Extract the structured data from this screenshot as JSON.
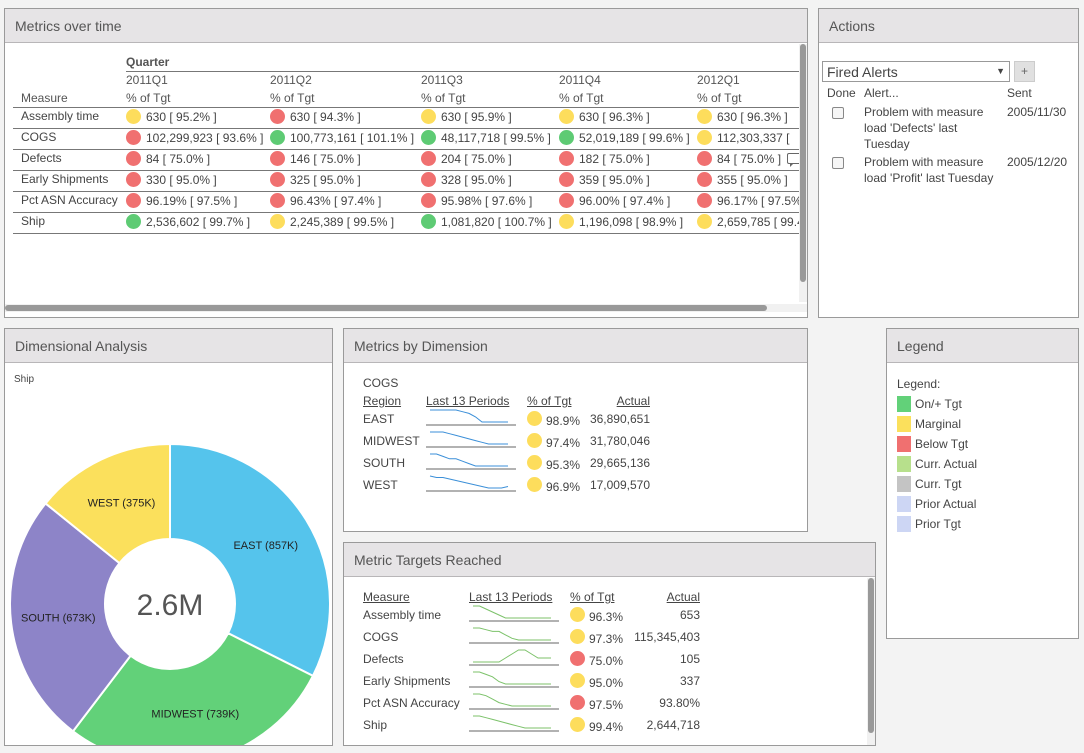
{
  "metrics_over_time": {
    "title": "Metrics over time",
    "group_header": "Quarter",
    "measure_header": "Measure",
    "subheader": "% of Tgt",
    "quarters": [
      "2011Q1",
      "2011Q2",
      "2011Q3",
      "2011Q4",
      "2012Q1"
    ],
    "rows": [
      {
        "measure": "Assembly time",
        "cells": [
          {
            "status": "yellow",
            "text": "630 [ 95.2% ]"
          },
          {
            "status": "red",
            "text": "630 [ 94.3% ]"
          },
          {
            "status": "yellow",
            "text": "630 [ 95.9% ]"
          },
          {
            "status": "yellow",
            "text": "630 [ 96.3% ]"
          },
          {
            "status": "yellow",
            "text": "630 [ 96.3% ]"
          }
        ]
      },
      {
        "measure": "COGS",
        "cells": [
          {
            "status": "red",
            "text": "102,299,923 [ 93.6% ]"
          },
          {
            "status": "green",
            "text": "100,773,161 [ 101.1% ]"
          },
          {
            "status": "green",
            "text": "48,117,718 [ 99.5% ]"
          },
          {
            "status": "green",
            "text": "52,019,189 [ 99.6% ]"
          },
          {
            "status": "yellow",
            "text": "112,303,337 ["
          }
        ]
      },
      {
        "measure": "Defects",
        "cells": [
          {
            "status": "red",
            "text": "84 [ 75.0% ]"
          },
          {
            "status": "red",
            "text": "146 [ 75.0% ]"
          },
          {
            "status": "red",
            "text": "204 [ 75.0% ]"
          },
          {
            "status": "red",
            "text": "182 [ 75.0% ]"
          },
          {
            "status": "red",
            "text": "84 [ 75.0% ]",
            "comment": true
          }
        ]
      },
      {
        "measure": "Early Shipments",
        "cells": [
          {
            "status": "red",
            "text": "330 [ 95.0% ]"
          },
          {
            "status": "red",
            "text": "325 [ 95.0% ]"
          },
          {
            "status": "red",
            "text": "328 [ 95.0% ]"
          },
          {
            "status": "red",
            "text": "359 [ 95.0% ]"
          },
          {
            "status": "red",
            "text": "355 [ 95.0% ]"
          }
        ]
      },
      {
        "measure": "Pct ASN Accuracy",
        "cells": [
          {
            "status": "red",
            "text": "96.19% [ 97.5% ]"
          },
          {
            "status": "red",
            "text": "96.43% [ 97.4% ]"
          },
          {
            "status": "red",
            "text": "95.98% [ 97.6% ]"
          },
          {
            "status": "red",
            "text": "96.00% [ 97.4% ]"
          },
          {
            "status": "red",
            "text": "96.17% [ 97.5%"
          }
        ]
      },
      {
        "measure": "Ship",
        "cells": [
          {
            "status": "green",
            "text": "2,536,602 [ 99.7% ]"
          },
          {
            "status": "yellow",
            "text": "2,245,389 [ 99.5% ]"
          },
          {
            "status": "green",
            "text": "1,081,820 [ 100.7% ]"
          },
          {
            "status": "yellow",
            "text": "1,196,098 [ 98.9% ]"
          },
          {
            "status": "yellow",
            "text": "2,659,785 [ 99.4"
          }
        ]
      }
    ]
  },
  "actions": {
    "title": "Actions",
    "dropdown_value": "Fired Alerts",
    "add_label": "+",
    "columns": {
      "done": "Done",
      "alert": "Alert...",
      "sent": "Sent"
    },
    "alerts": [
      {
        "lines": [
          "Problem with measure",
          "load 'Defects' last",
          "Tuesday"
        ],
        "sent": "2005/11/30"
      },
      {
        "lines": [
          "Problem with measure",
          "load 'Profit' last Tuesday"
        ],
        "sent": "2005/12/20"
      }
    ]
  },
  "dimensional_analysis": {
    "title": "Dimensional Analysis",
    "measure": "Ship",
    "total_label": "2.6M",
    "chart_data": {
      "type": "pie",
      "title": "Ship",
      "categories": [
        "EAST",
        "MIDWEST",
        "SOUTH",
        "WEST"
      ],
      "values": [
        857,
        739,
        673,
        375
      ],
      "labels": [
        "EAST (857K)",
        "MIDWEST (739K)",
        "SOUTH (673K)",
        "WEST (375K)"
      ],
      "colors": [
        "#55c4ec",
        "#62d179",
        "#8d84c8",
        "#fbe05c"
      ],
      "center_label": "2.6M"
    }
  },
  "metrics_by_dimension": {
    "title": "Metrics by Dimension",
    "measure": "COGS",
    "headers": {
      "dim": "Region",
      "trend": "Last 13 Periods",
      "pct": "% of Tgt",
      "actual": "Actual"
    },
    "trend_color": "#3b8fd8",
    "rows": [
      {
        "name": "EAST",
        "status": "yellow",
        "pct": "98.9%",
        "actual": "36,890,651",
        "trend": [
          10,
          10,
          10,
          10,
          10,
          9,
          8,
          6,
          3,
          3,
          3,
          3,
          3
        ]
      },
      {
        "name": "MIDWEST",
        "status": "yellow",
        "pct": "97.4%",
        "actual": "31,780,046",
        "trend": [
          10,
          10,
          10,
          9,
          8,
          7,
          6,
          5,
          4,
          3,
          3,
          3,
          3
        ]
      },
      {
        "name": "SOUTH",
        "status": "yellow",
        "pct": "95.3%",
        "actual": "29,665,136",
        "trend": [
          10,
          10,
          9,
          8,
          8,
          7,
          6,
          5,
          5,
          5,
          5,
          5,
          5
        ]
      },
      {
        "name": "WEST",
        "status": "yellow",
        "pct": "96.9%",
        "actual": "17,009,570",
        "trend": [
          10,
          9,
          9,
          8,
          7,
          6,
          5,
          4,
          3,
          2,
          2,
          2,
          3
        ]
      }
    ]
  },
  "metric_targets_reached": {
    "title": "Metric Targets Reached",
    "headers": {
      "dim": "Measure",
      "trend": "Last 13 Periods",
      "pct": "% of Tgt",
      "actual": "Actual"
    },
    "trend_color": "#7cc26a",
    "rows": [
      {
        "name": "Assembly time",
        "status": "yellow",
        "pct": "96.3%",
        "actual": "653",
        "trend": [
          10,
          10,
          9,
          8,
          7,
          6,
          6,
          6,
          6,
          6,
          6,
          6,
          6
        ]
      },
      {
        "name": "COGS",
        "status": "yellow",
        "pct": "97.3%",
        "actual": "115,345,403",
        "trend": [
          10,
          10,
          9,
          8,
          8,
          6,
          4,
          3,
          3,
          3,
          3,
          3,
          3
        ]
      },
      {
        "name": "Defects",
        "status": "red",
        "pct": "75.0%",
        "actual": "105",
        "trend": [
          4,
          4,
          4,
          4,
          4,
          5,
          6,
          7,
          7,
          6,
          5,
          5,
          5
        ]
      },
      {
        "name": "Early Shipments",
        "status": "yellow",
        "pct": "95.0%",
        "actual": "337",
        "trend": [
          9,
          9,
          8,
          7,
          5,
          4,
          4,
          4,
          4,
          4,
          4,
          4,
          4
        ]
      },
      {
        "name": "Pct ASN Accuracy",
        "status": "red",
        "pct": "97.5%",
        "actual": "93.80%",
        "trend": [
          10,
          10,
          9,
          7,
          5,
          4,
          3,
          3,
          3,
          3,
          3,
          3,
          3
        ]
      },
      {
        "name": "Ship",
        "status": "yellow",
        "pct": "99.4%",
        "actual": "2,644,718",
        "trend": [
          10,
          10,
          9,
          8,
          7,
          6,
          5,
          4,
          3,
          3,
          3,
          3,
          3
        ]
      }
    ]
  },
  "legend": {
    "title": "Legend",
    "label": "Legend:",
    "items": [
      {
        "label": "On/+ Tgt",
        "color": "#62d179"
      },
      {
        "label": "Marginal",
        "color": "#fbe05c"
      },
      {
        "label": "Below Tgt",
        "color": "#f07070"
      },
      {
        "label": "Curr. Actual",
        "color": "#b7e08c"
      },
      {
        "label": "Curr. Tgt",
        "color": "#c4c4c4"
      },
      {
        "label": "Prior Actual",
        "color": "#cdd6f4"
      },
      {
        "label": "Prior Tgt",
        "color": "#cdd6f4"
      }
    ]
  }
}
